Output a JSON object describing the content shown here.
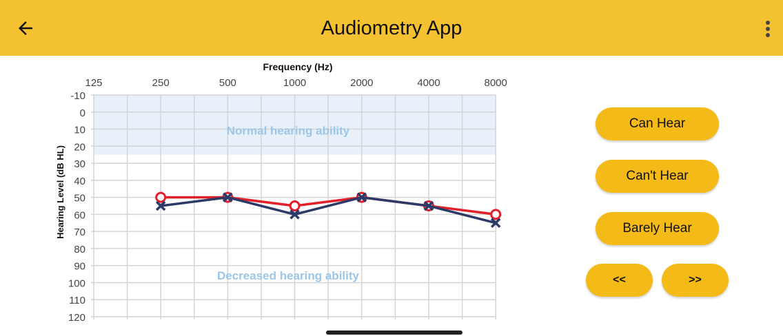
{
  "header": {
    "title": "Audiometry App",
    "back_icon": "arrow-left-icon",
    "menu_icon": "more-vert-icon",
    "color": "#F4C131"
  },
  "buttons": {
    "can_hear": "Can Hear",
    "cant_hear": "Can't Hear",
    "barely_hear": "Barely Hear",
    "prev": "<<",
    "next": ">>"
  },
  "chart_data": {
    "type": "line",
    "title": "Frequency (Hz)",
    "ylabel": "Hearing Level (dB HL)",
    "categories": [
      "125",
      "250",
      "500",
      "1000",
      "2000",
      "4000",
      "8000"
    ],
    "yticks": [
      -10,
      0,
      10,
      20,
      30,
      40,
      50,
      60,
      70,
      80,
      90,
      100,
      110,
      120
    ],
    "ylim": [
      -10,
      120
    ],
    "y_inverted": true,
    "grid": true,
    "regions": [
      {
        "label": "Normal hearing ability",
        "from": -10,
        "to": 25,
        "color": "#E8F1FA"
      },
      {
        "label": "Decreased hearing ability",
        "from": 25,
        "to": 120
      }
    ],
    "series": [
      {
        "marker": "circle",
        "color": "#E3202A",
        "x": [
          "250",
          "500",
          "1000",
          "2000",
          "4000",
          "8000"
        ],
        "values": [
          50,
          50,
          55,
          50,
          55,
          60
        ]
      },
      {
        "marker": "x",
        "color": "#2B3A67",
        "x": [
          "250",
          "500",
          "1000",
          "2000",
          "4000",
          "8000"
        ],
        "values": [
          55,
          50,
          60,
          50,
          55,
          65
        ]
      }
    ]
  }
}
